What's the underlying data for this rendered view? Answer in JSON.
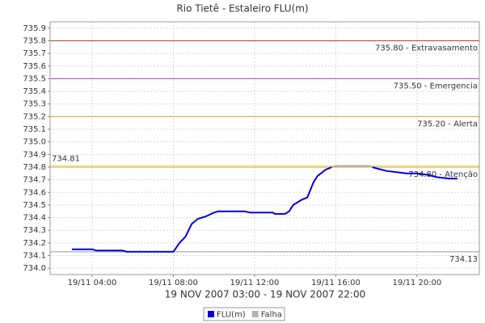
{
  "chart_data": {
    "type": "line",
    "title": "Rio Tietê - Estaleiro FLU(m)",
    "x_label": "19 NOV 2007 03:00 - 19 NOV 2007 22:00",
    "x": [
      3.0,
      4.0,
      4.2,
      5.5,
      5.7,
      8.0,
      8.3,
      8.6,
      8.9,
      9.2,
      9.6,
      10.0,
      10.2,
      11.5,
      11.8,
      12.9,
      13.0,
      13.5,
      13.7,
      13.9,
      14.3,
      14.6,
      14.9,
      15.1,
      15.5,
      15.8,
      16.0,
      17.6,
      17.8,
      18.0,
      18.5,
      19.0,
      19.5,
      20.0,
      20.5,
      21.0,
      21.6,
      22.0
    ],
    "series": [
      {
        "name": "FLU(m)",
        "color": "#0000dd",
        "values": [
          734.15,
          734.15,
          734.14,
          734.14,
          734.13,
          734.13,
          734.2,
          734.25,
          734.35,
          734.39,
          734.41,
          734.44,
          734.45,
          734.45,
          734.44,
          734.44,
          734.43,
          734.43,
          734.45,
          734.5,
          734.54,
          734.56,
          734.68,
          734.73,
          734.78,
          734.8,
          null,
          null,
          734.8,
          734.79,
          734.77,
          734.76,
          734.75,
          734.75,
          734.74,
          734.72,
          734.71,
          734.71
        ]
      },
      {
        "name": "Falha",
        "color": "#b4b4b4",
        "values": [
          null,
          null,
          null,
          null,
          null,
          null,
          null,
          null,
          null,
          null,
          null,
          null,
          null,
          null,
          null,
          null,
          null,
          null,
          null,
          null,
          null,
          null,
          null,
          null,
          null,
          734.8,
          734.81,
          734.81,
          734.8,
          null,
          null,
          null,
          null,
          null,
          null,
          null,
          null,
          null
        ]
      }
    ],
    "markers": [
      {
        "value": 735.8,
        "label": "735.80 - Extravasamento",
        "color": "#cc3333",
        "side": "right"
      },
      {
        "value": 735.5,
        "label": "735.50 - Emergencia",
        "color": "#cc33cc",
        "side": "right"
      },
      {
        "value": 735.2,
        "label": "735.20 - Alerta",
        "color": "#e0a020",
        "side": "right"
      },
      {
        "value": 734.8,
        "label": "734.80 - Atenção",
        "color": "#e0a020",
        "side": "right"
      },
      {
        "value": 734.81,
        "label": "734.81",
        "color": "#e8e040",
        "side": "left"
      },
      {
        "value": 734.13,
        "label": "734.13",
        "color": "#999999",
        "side": "right"
      }
    ],
    "xlim": [
      1.93,
      23.07
    ],
    "xticks": [
      {
        "value": 4,
        "label": "19/11 04:00"
      },
      {
        "value": 8,
        "label": "19/11 08:00"
      },
      {
        "value": 12,
        "label": "19/11 12:00"
      },
      {
        "value": 16,
        "label": "19/11 16:00"
      },
      {
        "value": 20,
        "label": "19/11 20:00"
      }
    ],
    "ylim": [
      733.95,
      735.95
    ],
    "yticks": [
      {
        "value": 734,
        "label": "734.0"
      },
      734.1,
      734.2,
      734.3,
      734.4,
      734.5,
      734.6,
      734.7,
      734.8,
      734.9,
      {
        "value": 735,
        "label": "735.0"
      },
      735.1,
      735.2,
      735.3,
      735.4,
      735.5,
      735.6,
      735.7,
      735.8,
      735.9
    ],
    "grid": true,
    "legend": "bottom"
  }
}
